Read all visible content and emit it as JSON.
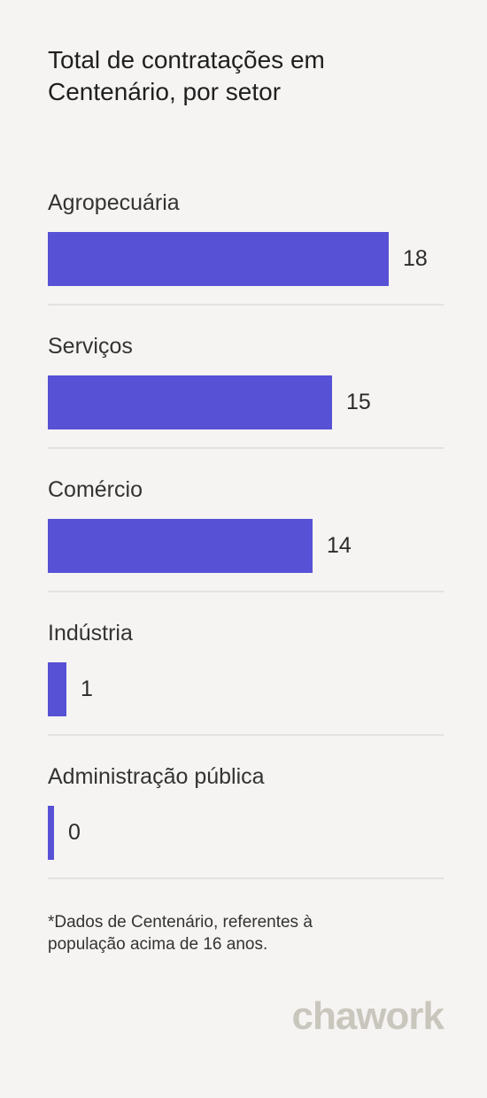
{
  "header": {
    "title_line1": "Total de contratações em",
    "title_line2": "Centenário, por setor"
  },
  "chart_data": {
    "type": "bar",
    "orientation": "horizontal",
    "title": "Total de contratações em Centenário, por setor",
    "categories": [
      "Agropecuária",
      "Serviços",
      "Comércio",
      "Indústria",
      "Administração pública"
    ],
    "values": [
      18,
      15,
      14,
      1,
      0
    ],
    "xlim": [
      0,
      18
    ],
    "bar_color": "#5751d6",
    "grid": false,
    "legend": "none"
  },
  "footnote": {
    "line1": "*Dados de Centenário, referentes à",
    "line2": "população acima de 16 anos."
  },
  "brand": {
    "logo_text": "chawork"
  }
}
